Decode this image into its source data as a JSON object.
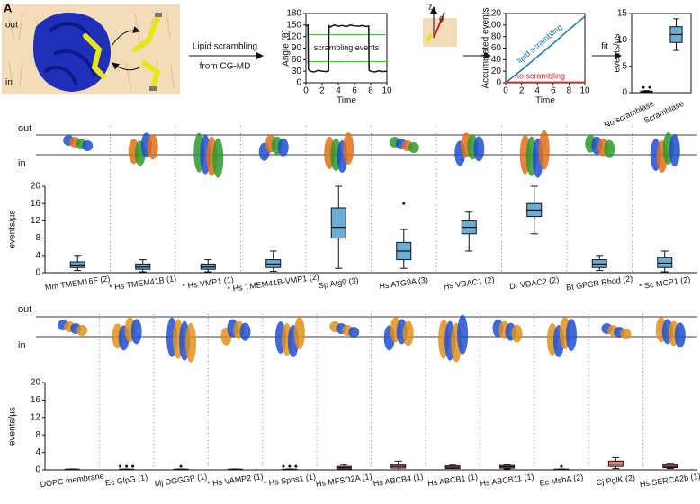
{
  "figure": {
    "panel_a": "A",
    "schematic_out": "out",
    "schematic_in": "in",
    "arrow_label_1": "Lipid scrambling",
    "arrow_label_2": "from CG-MD",
    "inset_z": "z",
    "inset_theta": "θ",
    "fit": "fit",
    "membrane_out_1": "out",
    "membrane_in_1": "in",
    "membrane_out_2": "out",
    "membrane_in_2": "in"
  },
  "chart_data": [
    {
      "type": "line",
      "x_label": "Time",
      "y_label": "Angle (θ)",
      "xlim": [
        0,
        10
      ],
      "xticks": [
        0,
        2,
        4,
        6,
        8,
        10
      ],
      "ylim": [
        0,
        180
      ],
      "yticks": [
        0,
        30,
        60,
        90,
        120,
        150,
        180
      ],
      "series": [
        {
          "name": null,
          "color": "#111111",
          "x": [
            0,
            0.25,
            0.3,
            0.5,
            1,
            1.5,
            2,
            2.5,
            2.8,
            2.85,
            3,
            3.5,
            4,
            4.5,
            5,
            5.5,
            6,
            6.5,
            7,
            7.5,
            7.75,
            7.8,
            8,
            8.5,
            9,
            9.5,
            10
          ],
          "values": [
            148,
            150,
            35,
            30,
            28,
            32,
            30,
            29,
            31,
            148,
            145,
            150,
            147,
            149,
            146,
            150,
            148,
            147,
            149,
            146,
            148,
            32,
            30,
            28,
            31,
            29,
            30
          ]
        }
      ],
      "hlines": [
        {
          "value": 125,
          "color": "#33cc33"
        },
        {
          "value": 55,
          "color": "#33cc33"
        }
      ],
      "annotations": [
        "scrambling events"
      ]
    },
    {
      "type": "line",
      "x_label": "Time",
      "y_label": "Accumulated events",
      "xlim": [
        0,
        10
      ],
      "xticks": [
        0,
        2,
        4,
        6,
        8,
        10
      ],
      "ylim": [
        0,
        120
      ],
      "yticks": [
        0,
        20,
        40,
        60,
        80,
        100,
        120
      ],
      "series": [
        {
          "name": "lipid scrambling",
          "color": "#1f77b4",
          "x": [
            0,
            2,
            4,
            6,
            8,
            10
          ],
          "values": [
            0,
            22,
            45,
            68,
            92,
            115
          ]
        },
        {
          "name": "no scrambling",
          "color": "#d62728",
          "x": [
            0,
            10
          ],
          "values": [
            1,
            1
          ]
        }
      ]
    },
    {
      "type": "box",
      "y_label": "events/µs",
      "ylim": [
        0,
        15
      ],
      "yticks": [
        0,
        5,
        10,
        15
      ],
      "categories": [
        "No scramblase",
        "Scramblase"
      ],
      "colors": [
        "#9e9e9e",
        "#6aaed6"
      ],
      "boxes": [
        {
          "min": 0,
          "q1": 0.1,
          "median": 0.2,
          "q3": 0.3,
          "max": 0.4,
          "outliers": [
            1,
            1
          ]
        },
        {
          "min": 8,
          "q1": 9.5,
          "median": 11,
          "q3": 12.5,
          "max": 14,
          "outliers": []
        }
      ]
    },
    {
      "type": "box",
      "y_label": "events/µs",
      "ylim": [
        0,
        20
      ],
      "yticks": [
        0,
        4,
        8,
        12,
        16,
        20
      ],
      "categories": [
        "Mm TMEM16F (2)",
        "* Hs TMEM41B (1)",
        "* Hs VMP1 (1)",
        "* Hs TMEM41B-VMP1 (2)",
        "Sp Atg9 (3)",
        "Hs ATG9A (3)",
        "Hs VDAC1 (2)",
        "Dr VDAC2 (2)",
        "Bt GPCR Rhod (2)",
        "* Sc MCP1 (2)"
      ],
      "colors": [
        "#6aaed6",
        "#6aaed6",
        "#6aaed6",
        "#6aaed6",
        "#6aaed6",
        "#6aaed6",
        "#6aaed6",
        "#6aaed6",
        "#6aaed6",
        "#6aaed6"
      ],
      "boxes": [
        {
          "min": 0.5,
          "q1": 1.2,
          "median": 1.8,
          "q3": 2.5,
          "max": 4,
          "outliers": []
        },
        {
          "min": 0.2,
          "q1": 0.8,
          "median": 1.3,
          "q3": 2,
          "max": 3,
          "outliers": []
        },
        {
          "min": 0.2,
          "q1": 0.8,
          "median": 1.3,
          "q3": 2,
          "max": 3,
          "outliers": []
        },
        {
          "min": 0.3,
          "q1": 1.2,
          "median": 2,
          "q3": 3,
          "max": 5,
          "outliers": []
        },
        {
          "min": 1,
          "q1": 8,
          "median": 10.5,
          "q3": 15,
          "max": 20,
          "outliers": []
        },
        {
          "min": 1,
          "q1": 3,
          "median": 5,
          "q3": 7,
          "max": 10,
          "outliers": [
            16
          ]
        },
        {
          "min": 5,
          "q1": 9,
          "median": 10.5,
          "q3": 12,
          "max": 14,
          "outliers": []
        },
        {
          "min": 9,
          "q1": 13,
          "median": 14.5,
          "q3": 16,
          "max": 20,
          "outliers": []
        },
        {
          "min": 0.5,
          "q1": 1.2,
          "median": 2,
          "q3": 3,
          "max": 4,
          "outliers": []
        },
        {
          "min": 0.2,
          "q1": 1.2,
          "median": 2.2,
          "q3": 3.5,
          "max": 5,
          "outliers": []
        }
      ]
    },
    {
      "type": "box",
      "y_label": "events/µs",
      "ylim": [
        0,
        20
      ],
      "yticks": [
        0,
        4,
        8,
        12,
        16,
        20
      ],
      "categories": [
        "DOPC membrane",
        "Ec GlpG (1)",
        "Mj DGGGP (1)",
        "* Hs VAMP2 (1)",
        "* Hs Spns1 (1)",
        "Hs MFSD2A (1)",
        "Hs ABCB4 (1)",
        "Hs ABCB1 (1)",
        "Hs ABCB11 (1)",
        "Ec MsbA (2)",
        "Cj PglK (2)",
        "Hs SERCA2b (1)"
      ],
      "colors": [
        "#9e9e9e",
        "#9e9e9e",
        "#9e9e9e",
        "#9e9e9e",
        "#9e9e9e",
        "#f08080",
        "#f08080",
        "#f08080",
        "#f08080",
        "#9e9e9e",
        "#f08080",
        "#f08080"
      ],
      "boxes": [
        {
          "min": 0,
          "q1": 0.05,
          "median": 0.1,
          "q3": 0.15,
          "max": 0.2,
          "outliers": []
        },
        {
          "min": 0,
          "q1": 0.05,
          "median": 0.1,
          "q3": 0.15,
          "max": 0.2,
          "outliers": [
            0.8,
            0.8,
            0.8
          ]
        },
        {
          "min": 0,
          "q1": 0.05,
          "median": 0.1,
          "q3": 0.15,
          "max": 0.2,
          "outliers": [
            0.8
          ]
        },
        {
          "min": 0,
          "q1": 0.05,
          "median": 0.1,
          "q3": 0.15,
          "max": 0.2,
          "outliers": []
        },
        {
          "min": 0,
          "q1": 0.05,
          "median": 0.1,
          "q3": 0.15,
          "max": 0.2,
          "outliers": [
            0.8,
            0.8,
            0.8
          ]
        },
        {
          "min": 0,
          "q1": 0.2,
          "median": 0.5,
          "q3": 0.8,
          "max": 1.2,
          "outliers": []
        },
        {
          "min": 0,
          "q1": 0.4,
          "median": 0.8,
          "q3": 1.2,
          "max": 2,
          "outliers": []
        },
        {
          "min": 0,
          "q1": 0.3,
          "median": 0.6,
          "q3": 0.9,
          "max": 1.2,
          "outliers": []
        },
        {
          "min": 0.2,
          "q1": 0.4,
          "median": 0.7,
          "q3": 1,
          "max": 1.2,
          "outliers": []
        },
        {
          "min": 0,
          "q1": 0.05,
          "median": 0.1,
          "q3": 0.15,
          "max": 0.2,
          "outliers": [
            0.8
          ]
        },
        {
          "min": 0.3,
          "q1": 0.8,
          "median": 1.3,
          "q3": 2,
          "max": 2.8,
          "outliers": []
        },
        {
          "min": 0.3,
          "q1": 0.5,
          "median": 0.8,
          "q3": 1.2,
          "max": 1.5,
          "outliers": []
        }
      ]
    }
  ]
}
